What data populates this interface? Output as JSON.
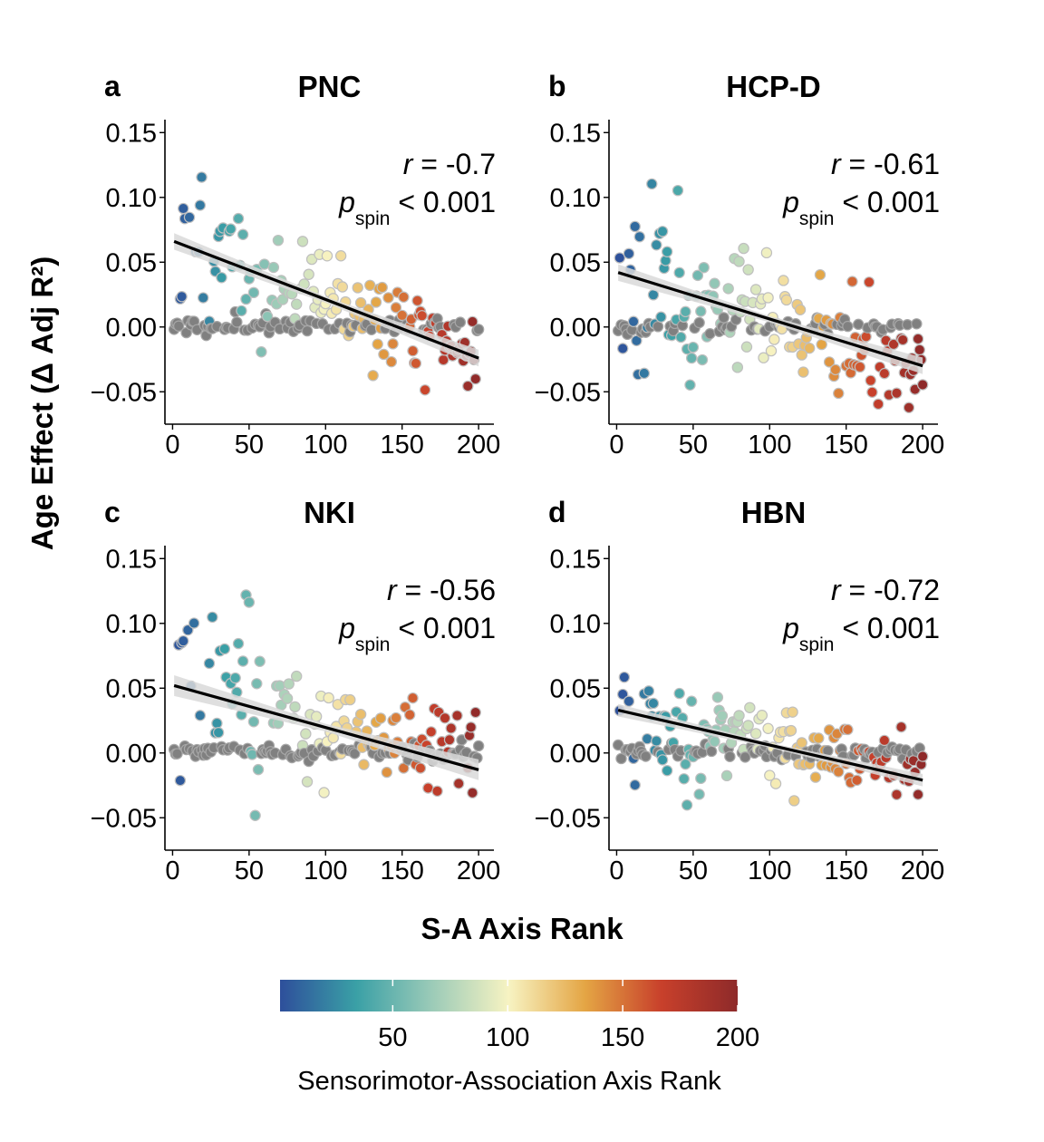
{
  "figure": {
    "ylabel": "Age Effect (Δ Adj R²)",
    "xlabel": "S-A Axis Rank",
    "colorbar": {
      "title": "Sensorimotor-Association Axis Rank",
      "ticks": [
        "50",
        "100",
        "150",
        "200"
      ],
      "tick_values": [
        50,
        100,
        150,
        200
      ],
      "range": [
        1,
        200
      ],
      "colors": [
        "#2e4f9b",
        "#3aa0a6",
        "#9ccbb8",
        "#f7f3c2",
        "#e4a544",
        "#c8402b",
        "#8e2a2a"
      ]
    },
    "point_gray": "#808080",
    "fit_line_color": "#000000",
    "ci_band_color": "#d9d9d9"
  },
  "chart_data": [
    {
      "type": "scatter",
      "letter": "a",
      "title": "PNC",
      "r_symbol": "r",
      "r_text": " = -0.7",
      "p_symbol": "p",
      "p_sub": "spin",
      "p_text": " < 0.001",
      "xlim": [
        -5,
        210
      ],
      "ylim": [
        -0.075,
        0.16
      ],
      "xticks": [
        0,
        50,
        100,
        150,
        200
      ],
      "xtick_labels": [
        "0",
        "50",
        "100",
        "150",
        "200"
      ],
      "yticks": [
        -0.05,
        0,
        0.05,
        0.1,
        0.15
      ],
      "ytick_labels": [
        "−0.05",
        "0.00",
        "0.05",
        "0.10",
        "0.15"
      ],
      "fit": {
        "x": [
          1,
          200
        ],
        "y": [
          0.066,
          -0.024
        ],
        "ci": 0.004
      },
      "seed": 11,
      "spread": 0.022,
      "zero_frac": 0.33
    },
    {
      "type": "scatter",
      "letter": "b",
      "title": "HCP-D",
      "r_symbol": "r",
      "r_text": " = -0.61",
      "p_symbol": "p",
      "p_sub": "spin",
      "p_text": " < 0.001",
      "xlim": [
        -5,
        210
      ],
      "ylim": [
        -0.075,
        0.16
      ],
      "xticks": [
        0,
        50,
        100,
        150,
        200
      ],
      "xtick_labels": [
        "0",
        "50",
        "100",
        "150",
        "200"
      ],
      "yticks": [
        -0.05,
        0,
        0.05,
        0.1,
        0.15
      ],
      "ytick_labels": [
        "−0.05",
        "0.00",
        "0.05",
        "0.10",
        "0.15"
      ],
      "fit": {
        "x": [
          1,
          200
        ],
        "y": [
          0.042,
          -0.03
        ],
        "ci": 0.004
      },
      "seed": 23,
      "spread": 0.025,
      "zero_frac": 0.28
    },
    {
      "type": "scatter",
      "letter": "c",
      "title": "NKI",
      "r_symbol": "r",
      "r_text": " = -0.56",
      "p_symbol": "p",
      "p_sub": "spin",
      "p_text": " < 0.001",
      "xlim": [
        -5,
        210
      ],
      "ylim": [
        -0.075,
        0.16
      ],
      "xticks": [
        0,
        50,
        100,
        150,
        200
      ],
      "xtick_labels": [
        "0",
        "50",
        "100",
        "150",
        "200"
      ],
      "yticks": [
        -0.05,
        0,
        0.05,
        0.1,
        0.15
      ],
      "ytick_labels": [
        "−0.05",
        "0.00",
        "0.05",
        "0.10",
        "0.15"
      ],
      "fit": {
        "x": [
          1,
          200
        ],
        "y": [
          0.052,
          -0.013
        ],
        "ci": 0.005
      },
      "seed": 37,
      "spread": 0.026,
      "zero_frac": 0.42
    },
    {
      "type": "scatter",
      "letter": "d",
      "title": "HBN",
      "r_symbol": "r",
      "r_text": " = -0.72",
      "p_symbol": "p",
      "p_sub": "spin",
      "p_text": " < 0.001",
      "xlim": [
        -5,
        210
      ],
      "ylim": [
        -0.075,
        0.16
      ],
      "xticks": [
        0,
        50,
        100,
        150,
        200
      ],
      "xtick_labels": [
        "0",
        "50",
        "100",
        "150",
        "200"
      ],
      "yticks": [
        -0.05,
        0,
        0.05,
        0.1,
        0.15
      ],
      "ytick_labels": [
        "−0.05",
        "0.00",
        "0.05",
        "0.10",
        "0.15"
      ],
      "fit": {
        "x": [
          1,
          200
        ],
        "y": [
          0.033,
          -0.021
        ],
        "ci": 0.003
      },
      "seed": 53,
      "spread": 0.017,
      "zero_frac": 0.35
    }
  ]
}
